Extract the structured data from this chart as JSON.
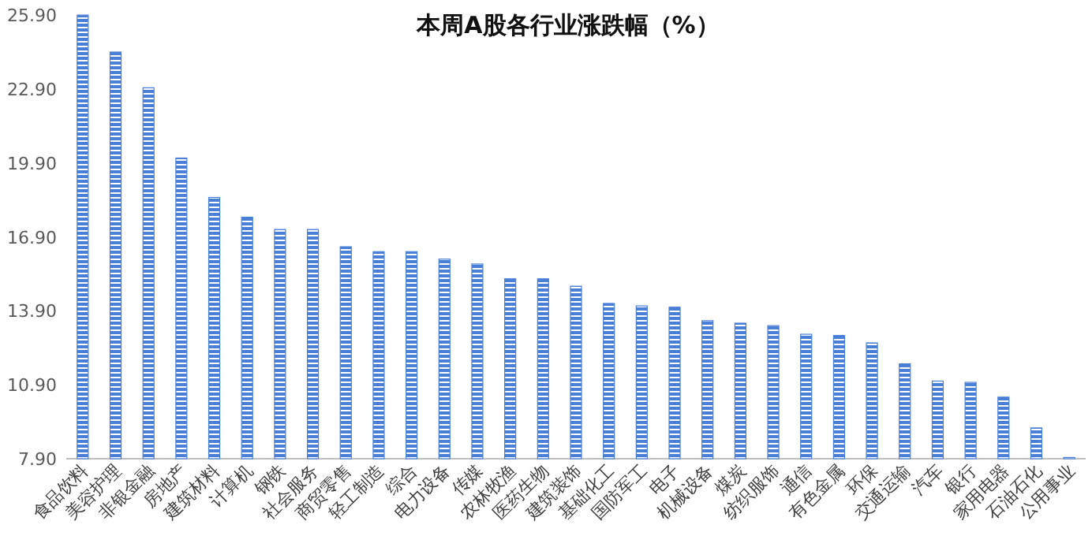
{
  "chart_data": {
    "type": "bar",
    "title": "本周A股各行业涨跌幅（%）",
    "categories": [
      "食品饮料",
      "美容护理",
      "非银金融",
      "房地产",
      "建筑材料",
      "计算机",
      "钢铁",
      "社会服务",
      "商贸零售",
      "轻工制造",
      "综合",
      "电力设备",
      "传媒",
      "农林牧渔",
      "医药生物",
      "建筑装饰",
      "基础化工",
      "国防军工",
      "电子",
      "机械设备",
      "煤炭",
      "纺织服饰",
      "通信",
      "有色金属",
      "环保",
      "交通运输",
      "汽车",
      "银行",
      "家用电器",
      "石油石化",
      "公用事业"
    ],
    "values": [
      25.9,
      24.4,
      22.95,
      20.1,
      18.5,
      17.7,
      17.2,
      17.2,
      16.5,
      16.3,
      16.3,
      16.0,
      15.8,
      15.2,
      15.2,
      14.9,
      14.2,
      14.1,
      14.05,
      13.5,
      13.4,
      13.3,
      12.95,
      12.9,
      12.6,
      11.75,
      11.05,
      11.0,
      10.4,
      9.15,
      7.95
    ],
    "color": "#4a7fd8",
    "ylim": [
      7.9,
      26.0
    ],
    "yticks": [
      {
        "value": 7.9,
        "label": "7.90"
      },
      {
        "value": 10.9,
        "label": "10.90"
      },
      {
        "value": 13.9,
        "label": "13.90"
      },
      {
        "value": 16.9,
        "label": "16.90"
      },
      {
        "value": 19.9,
        "label": "19.90"
      },
      {
        "value": 22.9,
        "label": "22.90"
      },
      {
        "value": 25.9,
        "label": "25.90"
      }
    ],
    "grid": false
  }
}
